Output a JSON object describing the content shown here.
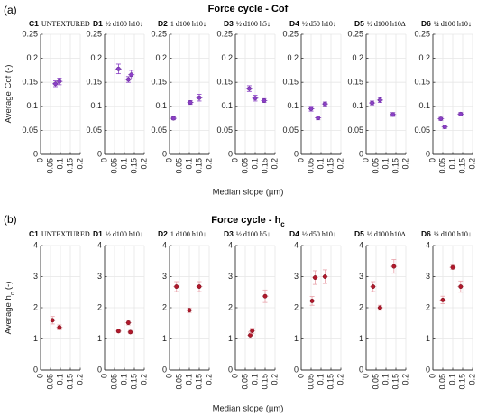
{
  "figure": {
    "colors": {
      "cof_marker": "#8b3fc6",
      "cof_marker_edge": "#5d2a8a",
      "hc_marker": "#b2182b",
      "hc_marker_edge": "#6e0f1a",
      "hc_errorbar": "#e8a0a8",
      "grid": "#e6e6e6"
    }
  },
  "chart_data": [
    {
      "type": "scatter",
      "panel_label": "(a)",
      "title": "Force cycle - Cof",
      "xlabel": "Median slope (µm)",
      "ylabel": "Average Cof (-)",
      "ylim": [
        0,
        0.25
      ],
      "yticks": [
        "0",
        "0.05",
        "0.1",
        "0.15",
        "0.2",
        "0.25"
      ],
      "xlim": [
        0,
        0.2
      ],
      "xticks": [
        "0",
        "0.05",
        "0.1",
        "0.15",
        "0.2"
      ],
      "grid": true,
      "subplots": [
        {
          "code": "C1",
          "label": "UNTEXTURED",
          "points": [
            {
              "x": 0.075,
              "y": 0.147,
              "err": 0.006
            },
            {
              "x": 0.095,
              "y": 0.152,
              "err": 0.007
            }
          ]
        },
        {
          "code": "D1",
          "label": "½ d100 h10↓",
          "points": [
            {
              "x": 0.07,
              "y": 0.178,
              "err": 0.01
            },
            {
              "x": 0.12,
              "y": 0.156,
              "err": 0.006
            },
            {
              "x": 0.135,
              "y": 0.166,
              "err": 0.009
            }
          ]
        },
        {
          "code": "D2",
          "label": "1 d100 h10↓",
          "points": [
            {
              "x": 0.02,
              "y": 0.075,
              "err": 0.003
            },
            {
              "x": 0.105,
              "y": 0.108,
              "err": 0.004
            },
            {
              "x": 0.15,
              "y": 0.118,
              "err": 0.007
            }
          ]
        },
        {
          "code": "D3",
          "label": "½ d100 h5↓",
          "points": [
            {
              "x": 0.07,
              "y": 0.137,
              "err": 0.006
            },
            {
              "x": 0.1,
              "y": 0.117,
              "err": 0.006
            },
            {
              "x": 0.145,
              "y": 0.112,
              "err": 0.004
            }
          ]
        },
        {
          "code": "D4",
          "label": "½ d50 h10↓",
          "points": [
            {
              "x": 0.05,
              "y": 0.095,
              "err": 0.005
            },
            {
              "x": 0.085,
              "y": 0.076,
              "err": 0.004
            },
            {
              "x": 0.12,
              "y": 0.105,
              "err": 0.004
            }
          ]
        },
        {
          "code": "D5",
          "label": "½ d100 h10∆",
          "points": [
            {
              "x": 0.03,
              "y": 0.107,
              "err": 0.004
            },
            {
              "x": 0.07,
              "y": 0.113,
              "err": 0.005
            },
            {
              "x": 0.135,
              "y": 0.083,
              "err": 0.004
            }
          ]
        },
        {
          "code": "D6",
          "label": "¼ d100 h10↓",
          "points": [
            {
              "x": 0.04,
              "y": 0.074,
              "err": 0.003
            },
            {
              "x": 0.06,
              "y": 0.057,
              "err": 0.003
            },
            {
              "x": 0.14,
              "y": 0.084,
              "err": 0.003
            }
          ]
        }
      ]
    },
    {
      "type": "scatter",
      "panel_label": "(b)",
      "title": "Force cycle - h",
      "title_subscript": "c",
      "xlabel": "Median slope (µm)",
      "ylabel": "Average h",
      "ylabel_subscript": "c",
      "ylabel_suffix": " (-)",
      "ylim": [
        0,
        4
      ],
      "yticks": [
        "0",
        "1",
        "2",
        "3",
        "4"
      ],
      "xlim": [
        0,
        0.2
      ],
      "xticks": [
        "0",
        "0.05",
        "0.1",
        "0.15",
        "0.2"
      ],
      "grid": true,
      "subplots": [
        {
          "code": "C1",
          "label": "UNTEXTURED",
          "points": [
            {
              "x": 0.06,
              "y": 1.6,
              "err": 0.12
            },
            {
              "x": 0.095,
              "y": 1.37,
              "err": 0.08
            }
          ]
        },
        {
          "code": "D1",
          "label": "½ d100 h10↓",
          "points": [
            {
              "x": 0.07,
              "y": 1.25,
              "err": 0.05
            },
            {
              "x": 0.12,
              "y": 1.52,
              "err": 0.07
            },
            {
              "x": 0.13,
              "y": 1.22,
              "err": 0.05
            }
          ]
        },
        {
          "code": "D2",
          "label": "1 d100 h10↓",
          "points": [
            {
              "x": 0.035,
              "y": 2.68,
              "err": 0.16
            },
            {
              "x": 0.1,
              "y": 1.92,
              "err": 0.07
            },
            {
              "x": 0.15,
              "y": 2.68,
              "err": 0.16
            }
          ]
        },
        {
          "code": "D3",
          "label": "½ d100 h5↓",
          "points": [
            {
              "x": 0.075,
              "y": 1.12,
              "err": 0.1
            },
            {
              "x": 0.085,
              "y": 1.26,
              "err": 0.08
            },
            {
              "x": 0.15,
              "y": 2.37,
              "err": 0.2
            }
          ]
        },
        {
          "code": "D4",
          "label": "½ d50 h10↓",
          "points": [
            {
              "x": 0.055,
              "y": 2.22,
              "err": 0.14
            },
            {
              "x": 0.07,
              "y": 2.97,
              "err": 0.22
            },
            {
              "x": 0.12,
              "y": 3.0,
              "err": 0.22
            }
          ]
        },
        {
          "code": "D5",
          "label": "½ d100 h10∆",
          "points": [
            {
              "x": 0.035,
              "y": 2.68,
              "err": 0.16
            },
            {
              "x": 0.07,
              "y": 2.0,
              "err": 0.08
            },
            {
              "x": 0.14,
              "y": 3.33,
              "err": 0.22
            }
          ]
        },
        {
          "code": "D6",
          "label": "¼ d100 h10↓",
          "points": [
            {
              "x": 0.05,
              "y": 2.25,
              "err": 0.12
            },
            {
              "x": 0.1,
              "y": 3.3,
              "err": 0.07
            },
            {
              "x": 0.14,
              "y": 2.68,
              "err": 0.18
            }
          ]
        }
      ]
    }
  ]
}
